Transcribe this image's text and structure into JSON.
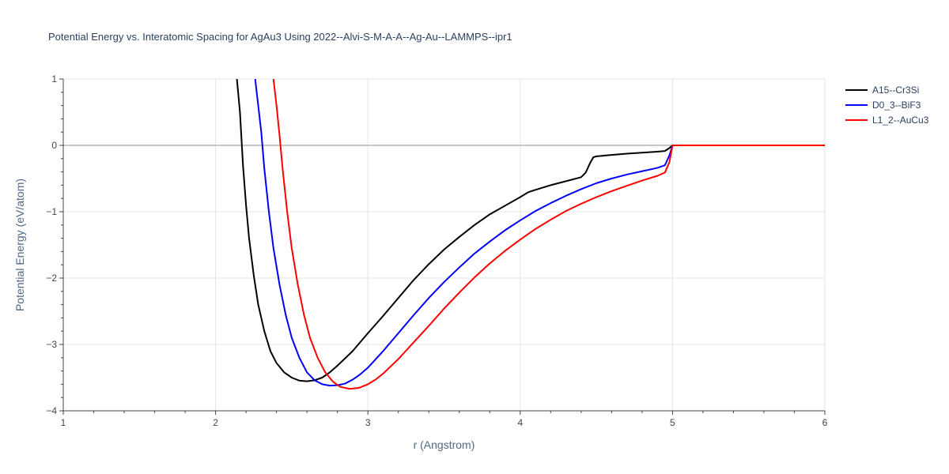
{
  "chart_data": {
    "type": "line",
    "title": "Potential Energy vs. Interatomic Spacing for AgAu3 Using 2022--Alvi-S-M-A-A--Ag-Au--LAMMPS--ipr1",
    "xlabel": "r (Angstrom)",
    "ylabel": "Potential Energy (eV/atom)",
    "xlim": [
      1,
      6
    ],
    "ylim": [
      -4,
      1
    ],
    "x_ticks": [
      1,
      2,
      3,
      4,
      5,
      6
    ],
    "y_ticks": [
      1,
      0,
      -1,
      -2,
      -3,
      -4
    ],
    "y_tick_labels": [
      "1",
      "0",
      "−1",
      "−2",
      "−3",
      "−4"
    ],
    "grid": true,
    "legend_position": "top-right",
    "series": [
      {
        "name": "A15--Cr3Si",
        "color": "#000000",
        "points": [
          [
            2.14,
            1.0
          ],
          [
            2.16,
            0.5
          ],
          [
            2.18,
            -0.3
          ],
          [
            2.2,
            -0.9
          ],
          [
            2.22,
            -1.4
          ],
          [
            2.25,
            -1.95
          ],
          [
            2.28,
            -2.4
          ],
          [
            2.32,
            -2.8
          ],
          [
            2.36,
            -3.1
          ],
          [
            2.4,
            -3.28
          ],
          [
            2.45,
            -3.42
          ],
          [
            2.5,
            -3.5
          ],
          [
            2.55,
            -3.545
          ],
          [
            2.6,
            -3.555
          ],
          [
            2.65,
            -3.54
          ],
          [
            2.7,
            -3.5
          ],
          [
            2.75,
            -3.42
          ],
          [
            2.8,
            -3.32
          ],
          [
            2.9,
            -3.1
          ],
          [
            3.0,
            -2.83
          ],
          [
            3.1,
            -2.57
          ],
          [
            3.2,
            -2.3
          ],
          [
            3.3,
            -2.03
          ],
          [
            3.4,
            -1.79
          ],
          [
            3.5,
            -1.57
          ],
          [
            3.6,
            -1.38
          ],
          [
            3.7,
            -1.2
          ],
          [
            3.8,
            -1.04
          ],
          [
            3.9,
            -0.91
          ],
          [
            4.0,
            -0.78
          ],
          [
            4.05,
            -0.71
          ],
          [
            4.06,
            -0.7
          ],
          [
            4.1,
            -0.67
          ],
          [
            4.2,
            -0.6
          ],
          [
            4.3,
            -0.54
          ],
          [
            4.4,
            -0.48
          ],
          [
            4.43,
            -0.41
          ],
          [
            4.46,
            -0.26
          ],
          [
            4.48,
            -0.18
          ],
          [
            4.5,
            -0.165
          ],
          [
            4.6,
            -0.145
          ],
          [
            4.7,
            -0.125
          ],
          [
            4.8,
            -0.11
          ],
          [
            4.9,
            -0.095
          ],
          [
            4.95,
            -0.085
          ],
          [
            4.98,
            -0.04
          ],
          [
            5.0,
            0.0
          ],
          [
            6.0,
            0.0
          ]
        ]
      },
      {
        "name": "D0_3--BiF3",
        "color": "#0000ff",
        "points": [
          [
            2.26,
            1.0
          ],
          [
            2.28,
            0.6
          ],
          [
            2.3,
            0.2
          ],
          [
            2.32,
            -0.35
          ],
          [
            2.35,
            -1.0
          ],
          [
            2.38,
            -1.55
          ],
          [
            2.42,
            -2.1
          ],
          [
            2.46,
            -2.55
          ],
          [
            2.5,
            -2.9
          ],
          [
            2.55,
            -3.2
          ],
          [
            2.6,
            -3.42
          ],
          [
            2.65,
            -3.54
          ],
          [
            2.7,
            -3.6
          ],
          [
            2.75,
            -3.62
          ],
          [
            2.8,
            -3.615
          ],
          [
            2.85,
            -3.59
          ],
          [
            2.9,
            -3.53
          ],
          [
            2.95,
            -3.45
          ],
          [
            3.0,
            -3.35
          ],
          [
            3.1,
            -3.1
          ],
          [
            3.2,
            -2.83
          ],
          [
            3.3,
            -2.56
          ],
          [
            3.4,
            -2.3
          ],
          [
            3.5,
            -2.06
          ],
          [
            3.6,
            -1.84
          ],
          [
            3.7,
            -1.63
          ],
          [
            3.8,
            -1.45
          ],
          [
            3.9,
            -1.28
          ],
          [
            4.0,
            -1.13
          ],
          [
            4.1,
            -0.99
          ],
          [
            4.2,
            -0.87
          ],
          [
            4.3,
            -0.76
          ],
          [
            4.4,
            -0.66
          ],
          [
            4.5,
            -0.57
          ],
          [
            4.6,
            -0.5
          ],
          [
            4.7,
            -0.44
          ],
          [
            4.8,
            -0.39
          ],
          [
            4.9,
            -0.34
          ],
          [
            4.95,
            -0.3
          ],
          [
            4.98,
            -0.15
          ],
          [
            5.0,
            0.0
          ],
          [
            6.0,
            0.0
          ]
        ]
      },
      {
        "name": "L1_2--AuCu3",
        "color": "#ff0000",
        "points": [
          [
            2.38,
            1.0
          ],
          [
            2.4,
            0.6
          ],
          [
            2.42,
            0.15
          ],
          [
            2.44,
            -0.35
          ],
          [
            2.47,
            -1.0
          ],
          [
            2.5,
            -1.55
          ],
          [
            2.54,
            -2.1
          ],
          [
            2.58,
            -2.55
          ],
          [
            2.62,
            -2.9
          ],
          [
            2.67,
            -3.2
          ],
          [
            2.72,
            -3.42
          ],
          [
            2.77,
            -3.56
          ],
          [
            2.82,
            -3.64
          ],
          [
            2.88,
            -3.67
          ],
          [
            2.94,
            -3.655
          ],
          [
            3.0,
            -3.6
          ],
          [
            3.05,
            -3.53
          ],
          [
            3.1,
            -3.44
          ],
          [
            3.2,
            -3.22
          ],
          [
            3.3,
            -2.97
          ],
          [
            3.4,
            -2.72
          ],
          [
            3.5,
            -2.46
          ],
          [
            3.6,
            -2.22
          ],
          [
            3.7,
            -1.99
          ],
          [
            3.8,
            -1.78
          ],
          [
            3.9,
            -1.59
          ],
          [
            4.0,
            -1.42
          ],
          [
            4.1,
            -1.26
          ],
          [
            4.2,
            -1.12
          ],
          [
            4.3,
            -0.99
          ],
          [
            4.4,
            -0.88
          ],
          [
            4.5,
            -0.78
          ],
          [
            4.6,
            -0.69
          ],
          [
            4.7,
            -0.61
          ],
          [
            4.8,
            -0.53
          ],
          [
            4.9,
            -0.46
          ],
          [
            4.95,
            -0.41
          ],
          [
            4.98,
            -0.25
          ],
          [
            5.0,
            0.0
          ],
          [
            6.0,
            0.0
          ]
        ]
      }
    ]
  }
}
